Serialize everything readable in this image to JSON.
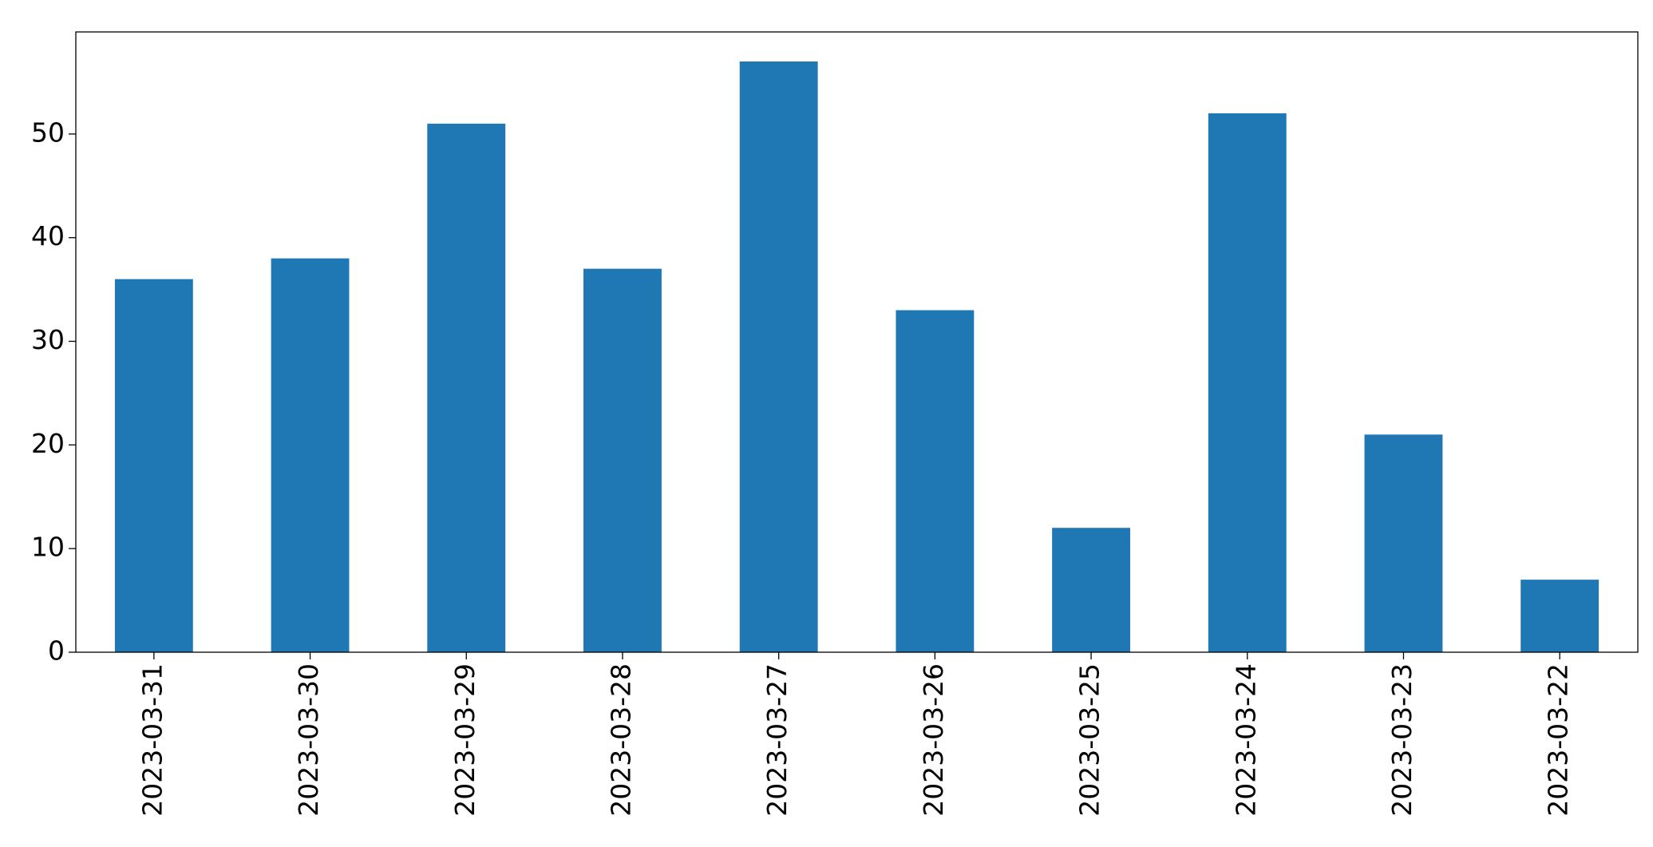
{
  "chart_data": {
    "type": "bar",
    "categories": [
      "2023-03-31",
      "2023-03-30",
      "2023-03-29",
      "2023-03-28",
      "2023-03-27",
      "2023-03-26",
      "2023-03-25",
      "2023-03-24",
      "2023-03-23",
      "2023-03-22"
    ],
    "values": [
      36,
      38,
      51,
      37,
      57,
      33,
      12,
      52,
      21,
      7
    ],
    "color": "#1f77b4",
    "ylim": [
      0,
      59.85
    ],
    "yticks": [
      0,
      10,
      20,
      30,
      40,
      50
    ],
    "grid": false
  }
}
